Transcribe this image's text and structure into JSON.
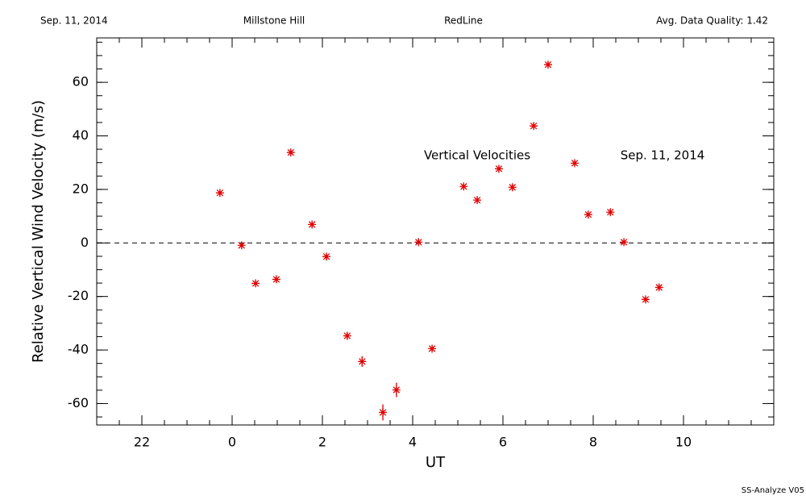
{
  "chart_data": {
    "type": "scatter",
    "header": [
      "Sep. 11, 2014",
      "Millstone Hill",
      "RedLine",
      "Avg. Data Quality: 1.42"
    ],
    "annotations": [
      "Vertical Velocities",
      "Sep. 11, 2014"
    ],
    "footer": "SS-Analyze V05",
    "xlabel": "UT",
    "ylabel": "Relative Vertical Wind Velocity (m/s)",
    "x": [
      -0.27,
      0.21,
      0.52,
      0.98,
      1.3,
      1.77,
      2.09,
      2.55,
      2.88,
      3.34,
      3.64,
      4.13,
      4.43,
      5.13,
      5.43,
      5.91,
      6.21,
      6.68,
      7.0,
      7.59,
      7.89,
      8.38,
      8.68,
      9.16,
      9.46
    ],
    "values": [
      18.7,
      -0.9,
      -15.1,
      -13.6,
      33.8,
      6.9,
      -5.1,
      -34.7,
      -44.3,
      -63.3,
      -54.9,
      0.3,
      -39.5,
      21.1,
      16.0,
      27.7,
      20.8,
      43.7,
      66.6,
      29.8,
      10.6,
      11.5,
      0.3,
      -21.1,
      -16.6
    ],
    "errors": [
      1,
      1,
      1,
      1,
      1,
      1,
      1,
      1.5,
      2,
      3,
      2.7,
      1,
      1,
      1,
      1,
      1,
      1,
      1,
      1,
      1,
      1,
      1,
      1,
      1,
      1
    ],
    "color": "#e00000",
    "xlim": [
      -3,
      12
    ],
    "xticks": [
      {
        "value": -2,
        "label": "22"
      },
      0,
      2,
      4,
      6,
      8,
      10
    ],
    "ylim": [
      -68,
      76.6
    ],
    "yticks": [
      -60,
      -40,
      -20,
      0,
      20,
      40,
      60
    ],
    "hline": 0
  }
}
